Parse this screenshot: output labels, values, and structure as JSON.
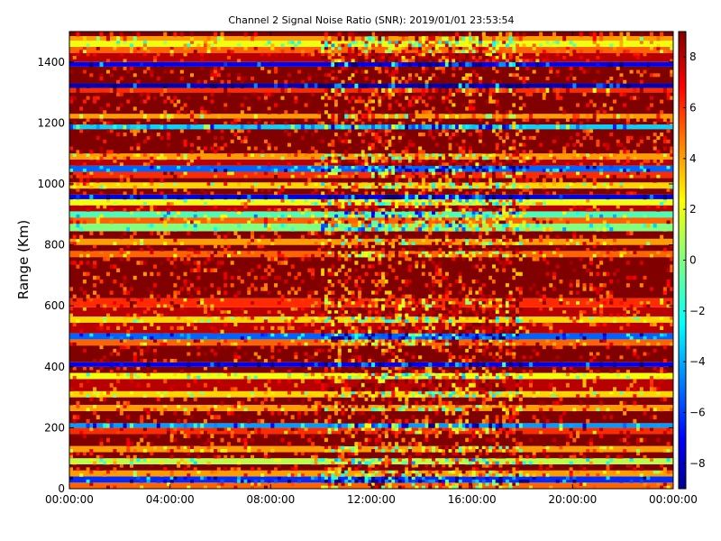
{
  "chart_data": {
    "type": "heatmap",
    "title": "Channel 2 Signal Noise Ratio (SNR): 2019/01/01 23:53:54",
    "xlabel": "",
    "ylabel": "Range (Km)",
    "x_ticks": [
      "00:00:00",
      "04:00:00",
      "08:00:00",
      "12:00:00",
      "16:00:00",
      "20:00:00",
      "00:00:00"
    ],
    "y_ticks": [
      "0",
      "200",
      "400",
      "600",
      "800",
      "1000",
      "1200",
      "1400"
    ],
    "y_tick_values": [
      0,
      200,
      400,
      600,
      800,
      1000,
      1200,
      1400
    ],
    "xlim_hours": [
      0,
      24
    ],
    "ylim": [
      0,
      1500
    ],
    "colorbar": {
      "ticks": [
        "−8",
        "−6",
        "−4",
        "−2",
        "0",
        "2",
        "4",
        "6",
        "8"
      ],
      "tick_values": [
        -8,
        -6,
        -4,
        -2,
        0,
        2,
        4,
        6,
        8
      ],
      "range": [
        -9,
        9
      ],
      "colormap": "jet"
    },
    "grid": false,
    "range_bands_km": [
      {
        "from": 0,
        "to": 20,
        "snr": 5
      },
      {
        "from": 20,
        "to": 40,
        "snr": -6
      },
      {
        "from": 40,
        "to": 60,
        "snr": 4
      },
      {
        "from": 60,
        "to": 80,
        "snr": 9
      },
      {
        "from": 80,
        "to": 100,
        "snr": 1
      },
      {
        "from": 100,
        "to": 120,
        "snr": 9
      },
      {
        "from": 120,
        "to": 140,
        "snr": 4
      },
      {
        "from": 140,
        "to": 180,
        "snr": 9
      },
      {
        "from": 180,
        "to": 200,
        "snr": 6
      },
      {
        "from": 200,
        "to": 215,
        "snr": -4
      },
      {
        "from": 215,
        "to": 255,
        "snr": 9
      },
      {
        "from": 255,
        "to": 275,
        "snr": 4
      },
      {
        "from": 275,
        "to": 300,
        "snr": 9
      },
      {
        "from": 300,
        "to": 320,
        "snr": 3
      },
      {
        "from": 320,
        "to": 360,
        "snr": 8
      },
      {
        "from": 360,
        "to": 380,
        "snr": 2
      },
      {
        "from": 380,
        "to": 400,
        "snr": 9
      },
      {
        "from": 400,
        "to": 415,
        "snr": -7
      },
      {
        "from": 415,
        "to": 470,
        "snr": 9
      },
      {
        "from": 470,
        "to": 490,
        "snr": 5
      },
      {
        "from": 490,
        "to": 510,
        "snr": -5
      },
      {
        "from": 510,
        "to": 545,
        "snr": 8
      },
      {
        "from": 545,
        "to": 565,
        "snr": 3
      },
      {
        "from": 565,
        "to": 595,
        "snr": 8
      },
      {
        "from": 595,
        "to": 625,
        "snr": 6
      },
      {
        "from": 625,
        "to": 760,
        "snr": 9
      },
      {
        "from": 760,
        "to": 780,
        "snr": 5
      },
      {
        "from": 780,
        "to": 800,
        "snr": 9
      },
      {
        "from": 800,
        "to": 820,
        "snr": 4
      },
      {
        "from": 820,
        "to": 845,
        "snr": 9
      },
      {
        "from": 845,
        "to": 870,
        "snr": 0
      },
      {
        "from": 870,
        "to": 890,
        "snr": 5
      },
      {
        "from": 890,
        "to": 910,
        "snr": -1
      },
      {
        "from": 910,
        "to": 930,
        "snr": 8
      },
      {
        "from": 930,
        "to": 950,
        "snr": 2
      },
      {
        "from": 950,
        "to": 965,
        "snr": -7
      },
      {
        "from": 965,
        "to": 985,
        "snr": 9
      },
      {
        "from": 985,
        "to": 1005,
        "snr": 3
      },
      {
        "from": 1005,
        "to": 1020,
        "snr": 9
      },
      {
        "from": 1020,
        "to": 1040,
        "snr": 6
      },
      {
        "from": 1040,
        "to": 1060,
        "snr": -5
      },
      {
        "from": 1060,
        "to": 1080,
        "snr": 8
      },
      {
        "from": 1080,
        "to": 1100,
        "snr": 4
      },
      {
        "from": 1100,
        "to": 1180,
        "snr": 9
      },
      {
        "from": 1180,
        "to": 1195,
        "snr": -3
      },
      {
        "from": 1195,
        "to": 1215,
        "snr": 9
      },
      {
        "from": 1215,
        "to": 1230,
        "snr": 4
      },
      {
        "from": 1230,
        "to": 1300,
        "snr": 9
      },
      {
        "from": 1300,
        "to": 1315,
        "snr": 6
      },
      {
        "from": 1315,
        "to": 1330,
        "snr": -8
      },
      {
        "from": 1330,
        "to": 1385,
        "snr": 9
      },
      {
        "from": 1385,
        "to": 1400,
        "snr": -7
      },
      {
        "from": 1400,
        "to": 1430,
        "snr": 8
      },
      {
        "from": 1430,
        "to": 1450,
        "snr": 5
      },
      {
        "from": 1450,
        "to": 1470,
        "snr": 2
      },
      {
        "from": 1470,
        "to": 1485,
        "snr": 4
      },
      {
        "from": 1485,
        "to": 1500,
        "snr": 9
      }
    ],
    "noisy_period_hours": [
      10,
      18
    ]
  }
}
